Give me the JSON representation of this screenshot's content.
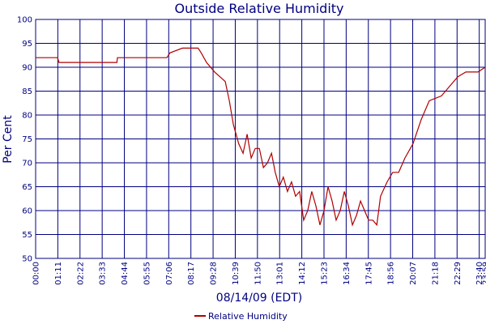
{
  "chart_data": {
    "type": "line",
    "title": "Outside Relative Humidity",
    "x_label": "08/14/09 (EDT)",
    "y_label": "Per Cent",
    "x": [
      0,
      70,
      75,
      260,
      262,
      420,
      430,
      470,
      520,
      530,
      547,
      573,
      590,
      607,
      620,
      633,
      650,
      664,
      677,
      690,
      703,
      716,
      729,
      742,
      755,
      767,
      780,
      793,
      806,
      819,
      832,
      845,
      858,
      871,
      884,
      897,
      910,
      923,
      936,
      949,
      962,
      975,
      988,
      1001,
      1014,
      1027,
      1040,
      1053,
      1066,
      1079,
      1092,
      1104,
      1125,
      1143,
      1162,
      1182,
      1208,
      1234,
      1260,
      1299,
      1325,
      1351,
      1377,
      1416,
      1439
    ],
    "series": [
      {
        "name": "Relative Humidity",
        "color": "#b00000",
        "values": [
          92,
          92,
          91,
          91,
          92,
          92,
          93,
          94,
          94,
          93,
          91,
          89,
          88,
          87,
          83,
          78,
          74,
          72,
          76,
          71,
          73,
          73,
          69,
          70,
          72,
          68,
          65,
          67,
          64,
          66,
          63,
          64,
          58,
          60,
          64,
          61,
          57,
          60,
          65,
          62,
          58,
          60,
          64,
          61,
          57,
          59,
          62,
          60,
          58,
          58,
          57,
          63,
          66,
          68,
          68,
          71,
          74,
          79,
          83,
          84,
          86,
          88,
          89,
          89,
          90
        ]
      }
    ],
    "xlim": [
      0,
      1439
    ],
    "xticks": [
      {
        "value": 0,
        "label": "00:00"
      },
      {
        "value": 71,
        "label": "01:11"
      },
      {
        "value": 142,
        "label": "02:22"
      },
      {
        "value": 213,
        "label": "03:33"
      },
      {
        "value": 284,
        "label": "04:44"
      },
      {
        "value": 355,
        "label": "05:55"
      },
      {
        "value": 426,
        "label": "07:06"
      },
      {
        "value": 497,
        "label": "08:17"
      },
      {
        "value": 568,
        "label": "09:28"
      },
      {
        "value": 639,
        "label": "10:39"
      },
      {
        "value": 710,
        "label": "11:50"
      },
      {
        "value": 781,
        "label": "13:01"
      },
      {
        "value": 852,
        "label": "14:12"
      },
      {
        "value": 923,
        "label": "15:23"
      },
      {
        "value": 994,
        "label": "16:34"
      },
      {
        "value": 1065,
        "label": "17:45"
      },
      {
        "value": 1136,
        "label": "18:56"
      },
      {
        "value": 1207,
        "label": "20:07"
      },
      {
        "value": 1278,
        "label": "21:18"
      },
      {
        "value": 1349,
        "label": "22:29"
      },
      {
        "value": 1420,
        "label": "23:40"
      },
      {
        "value": 1439,
        "label": "23:59"
      }
    ],
    "ylim": [
      50,
      100
    ],
    "yticks": [
      50,
      55,
      60,
      65,
      70,
      75,
      80,
      85,
      90,
      95,
      100
    ],
    "grid": true,
    "legend": "bottom"
  }
}
